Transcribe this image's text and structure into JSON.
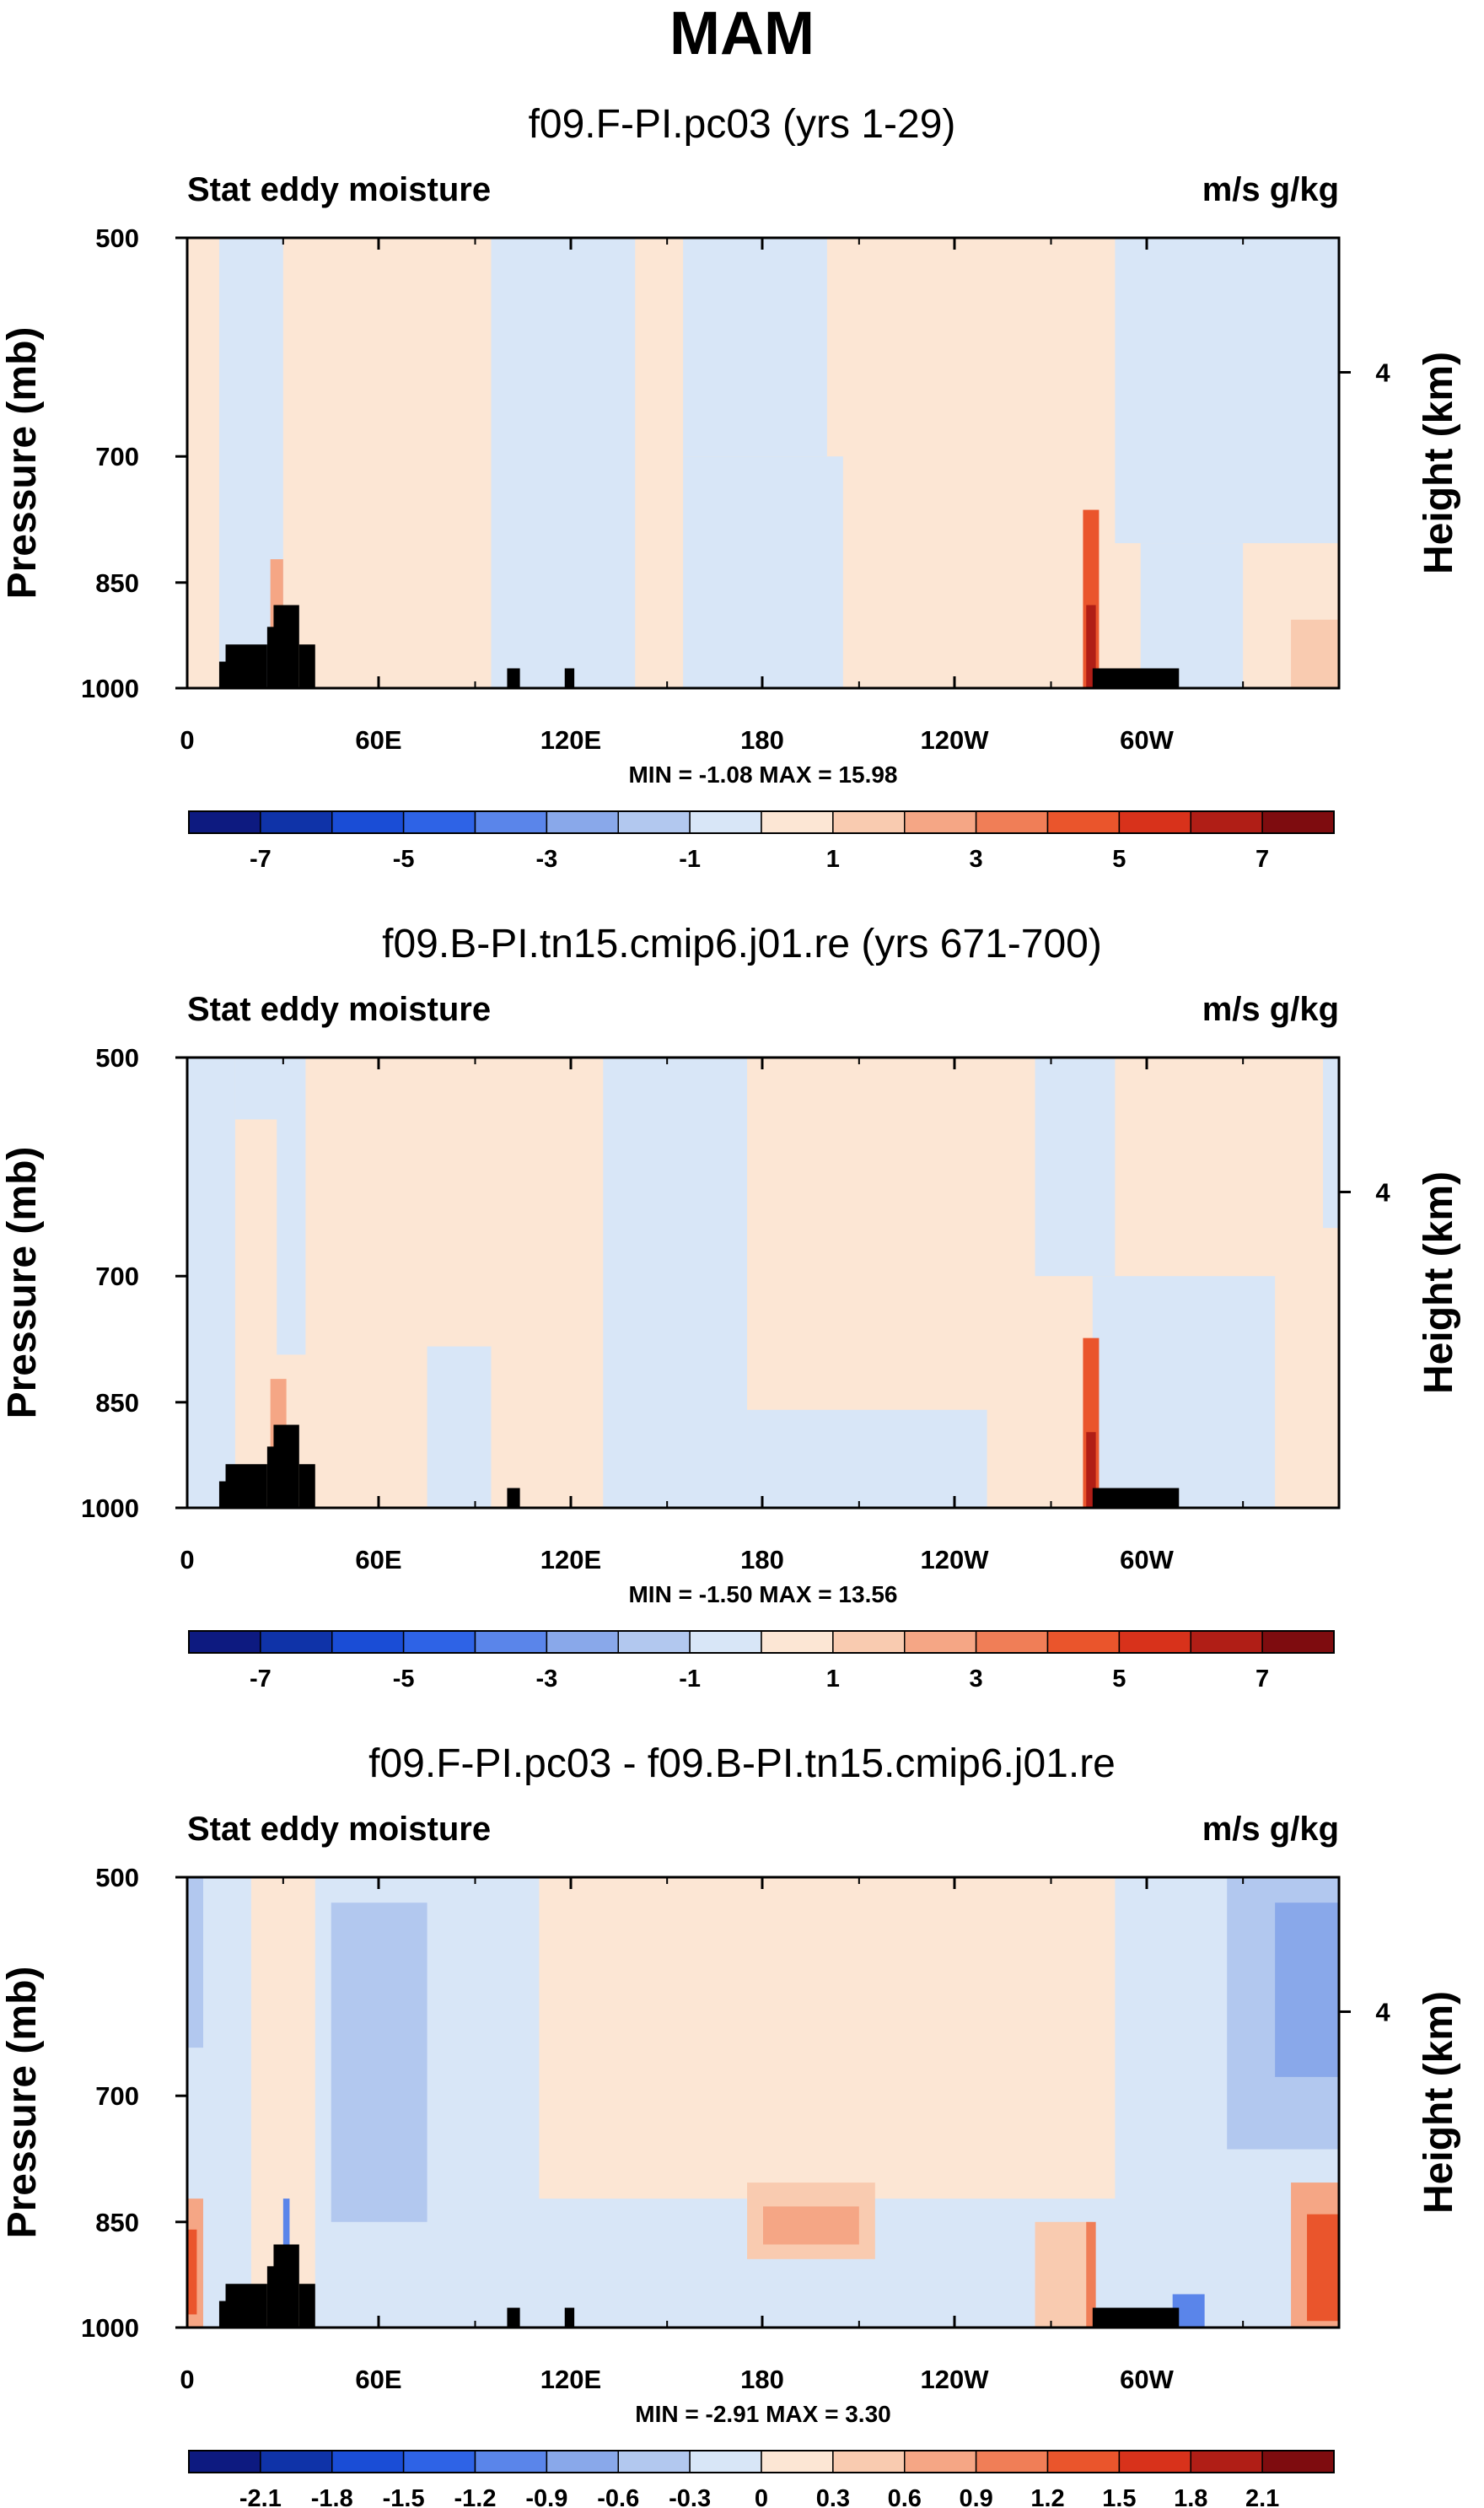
{
  "title": "MAM",
  "colors": {
    "black": "#000000",
    "land": "#000000",
    "colorbar_main": [
      "#0d1a80",
      "#0f33a8",
      "#1a4dd6",
      "#2e63e6",
      "#5a85ea",
      "#89a8ea",
      "#b2c8ef",
      "#d8e6f7",
      "#fce6d4",
      "#f9cbb0",
      "#f5a685",
      "#f07e57",
      "#ea552c",
      "#d8321b",
      "#b01e16",
      "#7e0c0f"
    ],
    "colorbar_diff": [
      "#0d1a80",
      "#0f33a8",
      "#1a4dd6",
      "#2e63e6",
      "#5a85ea",
      "#89a8ea",
      "#b2c8ef",
      "#d8e6f7",
      "#fce6d4",
      "#f9cbb0",
      "#f5a685",
      "#f07e57",
      "#ea552c",
      "#d8321b",
      "#b01e16",
      "#7e0c0f"
    ]
  },
  "chart_data": [
    {
      "type": "heatmap",
      "title": "f09.F-PI.pc03 (yrs 1-29)",
      "left_label": "Stat eddy moisture",
      "right_label": "m/s g/kg",
      "xlabel": "",
      "ylabel": "Pressure (mb)",
      "y2label": "Height (km)",
      "x_ticks": [
        "0",
        "60E",
        "120E",
        "180",
        "120W",
        "60W"
      ],
      "y_ticks": [
        "500",
        "700",
        "850",
        "1000"
      ],
      "y2_ticks": [
        "4"
      ],
      "xlim": [
        0,
        360
      ],
      "ylim": [
        1000,
        500
      ],
      "stats": "MIN =  -1.08   MAX =  15.98",
      "min": -1.08,
      "max": 15.98,
      "colorbar_labels": [
        "-7",
        "-5",
        "-3",
        "-1",
        "1",
        "3",
        "5",
        "7"
      ],
      "levels": [
        -7,
        -6,
        -5,
        -4,
        -3,
        -2,
        -1,
        0,
        1,
        2,
        3,
        4,
        5,
        6,
        7
      ],
      "regions": [
        {
          "lon": [
            0,
            360
          ],
          "p": [
            500,
            1000
          ],
          "class": 1
        },
        {
          "lon": [
            10,
            30
          ],
          "p": [
            500,
            1000
          ],
          "class": -1
        },
        {
          "lon": [
            95,
            140
          ],
          "p": [
            500,
            1000
          ],
          "class": -1
        },
        {
          "lon": [
            155,
            200
          ],
          "p": [
            500,
            700
          ],
          "class": -1
        },
        {
          "lon": [
            155,
            205
          ],
          "p": [
            700,
            1000
          ],
          "class": -1
        },
        {
          "lon": [
            290,
            360
          ],
          "p": [
            500,
            800
          ],
          "class": -1
        },
        {
          "lon": [
            298,
            330
          ],
          "p": [
            800,
            1000
          ],
          "class": -1
        },
        {
          "lon": [
            26,
            30
          ],
          "p": [
            820,
            1000
          ],
          "class": 3
        },
        {
          "lon": [
            280,
            285
          ],
          "p": [
            760,
            1000
          ],
          "class": 5
        },
        {
          "lon": [
            281,
            284
          ],
          "p": [
            880,
            1000
          ],
          "class": 7
        },
        {
          "lon": [
            345,
            360
          ],
          "p": [
            900,
            1000
          ],
          "class": 2
        }
      ],
      "land": [
        {
          "lon": [
            10,
            15
          ],
          "p": [
            960,
            1000
          ]
        },
        {
          "lon": [
            12,
            25
          ],
          "p": [
            935,
            1000
          ]
        },
        {
          "lon": [
            25,
            31
          ],
          "p": [
            910,
            1000
          ]
        },
        {
          "lon": [
            27,
            35
          ],
          "p": [
            880,
            1000
          ]
        },
        {
          "lon": [
            35,
            40
          ],
          "p": [
            935,
            1000
          ]
        },
        {
          "lon": [
            100,
            104
          ],
          "p": [
            970,
            1000
          ]
        },
        {
          "lon": [
            118,
            121
          ],
          "p": [
            970,
            1000
          ]
        },
        {
          "lon": [
            283,
            310
          ],
          "p": [
            970,
            1000
          ]
        }
      ]
    },
    {
      "type": "heatmap",
      "title": "f09.B-PI.tn15.cmip6.j01.re (yrs 671-700)",
      "left_label": "Stat eddy moisture",
      "right_label": "m/s g/kg",
      "xlabel": "",
      "ylabel": "Pressure (mb)",
      "y2label": "Height (km)",
      "x_ticks": [
        "0",
        "60E",
        "120E",
        "180",
        "120W",
        "60W"
      ],
      "y_ticks": [
        "500",
        "700",
        "850",
        "1000"
      ],
      "y2_ticks": [
        "4"
      ],
      "xlim": [
        0,
        360
      ],
      "ylim": [
        1000,
        500
      ],
      "stats": "MIN =  -1.50   MAX =  13.56",
      "min": -1.5,
      "max": 13.56,
      "colorbar_labels": [
        "-7",
        "-5",
        "-3",
        "-1",
        "1",
        "3",
        "5",
        "7"
      ],
      "levels": [
        -7,
        -6,
        -5,
        -4,
        -3,
        -2,
        -1,
        0,
        1,
        2,
        3,
        4,
        5,
        6,
        7
      ],
      "regions": [
        {
          "lon": [
            0,
            360
          ],
          "p": [
            500,
            1000
          ],
          "class": 1
        },
        {
          "lon": [
            0,
            15
          ],
          "p": [
            500,
            1000
          ],
          "class": -1
        },
        {
          "lon": [
            15,
            35
          ],
          "p": [
            500,
            550
          ],
          "class": -1
        },
        {
          "lon": [
            28,
            37
          ],
          "p": [
            500,
            790
          ],
          "class": -1
        },
        {
          "lon": [
            75,
            95
          ],
          "p": [
            780,
            1000
          ],
          "class": -1
        },
        {
          "lon": [
            130,
            175
          ],
          "p": [
            500,
            1000
          ],
          "class": -1
        },
        {
          "lon": [
            175,
            250
          ],
          "p": [
            860,
            1000
          ],
          "class": -1
        },
        {
          "lon": [
            265,
            290
          ],
          "p": [
            500,
            700
          ],
          "class": -1
        },
        {
          "lon": [
            283,
            340
          ],
          "p": [
            700,
            1000
          ],
          "class": -1
        },
        {
          "lon": [
            355,
            360
          ],
          "p": [
            500,
            650
          ],
          "class": -1
        },
        {
          "lon": [
            26,
            31
          ],
          "p": [
            820,
            1000
          ],
          "class": 3
        },
        {
          "lon": [
            280,
            285
          ],
          "p": [
            770,
            1000
          ],
          "class": 5
        },
        {
          "lon": [
            281,
            284
          ],
          "p": [
            890,
            1000
          ],
          "class": 7
        }
      ],
      "land": [
        {
          "lon": [
            10,
            15
          ],
          "p": [
            960,
            1000
          ]
        },
        {
          "lon": [
            12,
            25
          ],
          "p": [
            935,
            1000
          ]
        },
        {
          "lon": [
            25,
            31
          ],
          "p": [
            910,
            1000
          ]
        },
        {
          "lon": [
            27,
            35
          ],
          "p": [
            880,
            1000
          ]
        },
        {
          "lon": [
            35,
            40
          ],
          "p": [
            935,
            1000
          ]
        },
        {
          "lon": [
            100,
            104
          ],
          "p": [
            970,
            1000
          ]
        },
        {
          "lon": [
            283,
            310
          ],
          "p": [
            970,
            1000
          ]
        }
      ]
    },
    {
      "type": "heatmap",
      "title": "f09.F-PI.pc03 - f09.B-PI.tn15.cmip6.j01.re",
      "left_label": "Stat eddy moisture",
      "right_label": "m/s g/kg",
      "xlabel": "",
      "ylabel": "Pressure (mb)",
      "y2label": "Height (km)",
      "x_ticks": [
        "0",
        "60E",
        "120E",
        "180",
        "120W",
        "60W"
      ],
      "y_ticks": [
        "500",
        "700",
        "850",
        "1000"
      ],
      "y2_ticks": [
        "4"
      ],
      "xlim": [
        0,
        360
      ],
      "ylim": [
        1000,
        500
      ],
      "stats": "MIN =  -2.91   MAX =   3.30",
      "min": -2.91,
      "max": 3.3,
      "colorbar_labels": [
        "-2.1",
        "-1.8",
        "-1.5",
        "-1.2",
        "-0.9",
        "-0.6",
        "-0.3",
        "0",
        "0.3",
        "0.6",
        "0.9",
        "1.2",
        "1.5",
        "1.8",
        "2.1"
      ],
      "levels": [
        -2.1,
        -1.8,
        -1.5,
        -1.2,
        -0.9,
        -0.6,
        -0.3,
        0,
        0.3,
        0.6,
        0.9,
        1.2,
        1.5,
        1.8,
        2.1
      ],
      "regions": [
        {
          "lon": [
            0,
            360
          ],
          "p": [
            500,
            1000
          ],
          "class": -1
        },
        {
          "lon": [
            20,
            40
          ],
          "p": [
            500,
            1000
          ],
          "class": 1
        },
        {
          "lon": [
            110,
            290
          ],
          "p": [
            500,
            820
          ],
          "class": 1
        },
        {
          "lon": [
            175,
            215
          ],
          "p": [
            800,
            900
          ],
          "class": 2
        },
        {
          "lon": [
            180,
            210
          ],
          "p": [
            830,
            880
          ],
          "class": 3
        },
        {
          "lon": [
            265,
            283
          ],
          "p": [
            850,
            1000
          ],
          "class": 2
        },
        {
          "lon": [
            0,
            5
          ],
          "p": [
            820,
            1000
          ],
          "class": 3
        },
        {
          "lon": [
            0,
            3
          ],
          "p": [
            860,
            980
          ],
          "class": 5
        },
        {
          "lon": [
            345,
            360
          ],
          "p": [
            800,
            1000
          ],
          "class": 3
        },
        {
          "lon": [
            350,
            360
          ],
          "p": [
            840,
            990
          ],
          "class": 5
        },
        {
          "lon": [
            45,
            75
          ],
          "p": [
            520,
            850
          ],
          "class": -2
        },
        {
          "lon": [
            0,
            5
          ],
          "p": [
            500,
            650
          ],
          "class": -2
        },
        {
          "lon": [
            325,
            360
          ],
          "p": [
            500,
            760
          ],
          "class": -2
        },
        {
          "lon": [
            340,
            360
          ],
          "p": [
            520,
            680
          ],
          "class": -3
        },
        {
          "lon": [
            30,
            32
          ],
          "p": [
            820,
            960
          ],
          "class": -4
        },
        {
          "lon": [
            281,
            284
          ],
          "p": [
            850,
            1000
          ],
          "class": 4
        },
        {
          "lon": [
            308,
            318
          ],
          "p": [
            950,
            1000
          ],
          "class": -4
        }
      ],
      "land": [
        {
          "lon": [
            10,
            15
          ],
          "p": [
            960,
            1000
          ]
        },
        {
          "lon": [
            12,
            25
          ],
          "p": [
            935,
            1000
          ]
        },
        {
          "lon": [
            25,
            31
          ],
          "p": [
            910,
            1000
          ]
        },
        {
          "lon": [
            27,
            35
          ],
          "p": [
            880,
            1000
          ]
        },
        {
          "lon": [
            35,
            40
          ],
          "p": [
            935,
            1000
          ]
        },
        {
          "lon": [
            100,
            104
          ],
          "p": [
            970,
            1000
          ]
        },
        {
          "lon": [
            118,
            121
          ],
          "p": [
            970,
            1000
          ]
        },
        {
          "lon": [
            283,
            310
          ],
          "p": [
            970,
            1000
          ]
        }
      ]
    }
  ]
}
